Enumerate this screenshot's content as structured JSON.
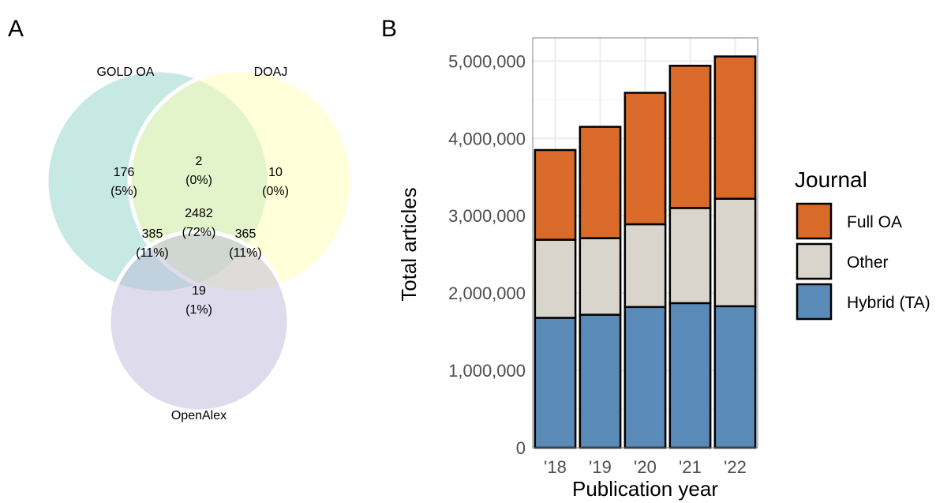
{
  "panels": {
    "a": "A",
    "b": "B"
  },
  "chart_data": [
    {
      "type": "venn",
      "sets": [
        {
          "name": "GOLD OA",
          "color": "#8dd3c7"
        },
        {
          "name": "DOAJ",
          "color": "#ffffb3"
        },
        {
          "name": "OpenAlex",
          "color": "#bebada"
        }
      ],
      "regions": [
        {
          "sets": [
            "GOLD OA"
          ],
          "count": "176",
          "pct": "(5%)"
        },
        {
          "sets": [
            "DOAJ"
          ],
          "count": "10",
          "pct": "(0%)"
        },
        {
          "sets": [
            "GOLD OA",
            "DOAJ"
          ],
          "count": "2",
          "pct": "(0%)"
        },
        {
          "sets": [
            "GOLD OA",
            "DOAJ",
            "OpenAlex"
          ],
          "count": "2482",
          "pct": "(72%)"
        },
        {
          "sets": [
            "GOLD OA",
            "OpenAlex"
          ],
          "count": "385",
          "pct": "(11%)"
        },
        {
          "sets": [
            "DOAJ",
            "OpenAlex"
          ],
          "count": "365",
          "pct": "(11%)"
        },
        {
          "sets": [
            "OpenAlex"
          ],
          "count": "19",
          "pct": "(1%)"
        }
      ]
    },
    {
      "type": "bar",
      "stacked": true,
      "categories": [
        "'18",
        "'19",
        "'20",
        "'21",
        "'22"
      ],
      "series": [
        {
          "name": "Hybrid (TA)",
          "color": "#5a8ab8",
          "values": [
            1680000,
            1720000,
            1820000,
            1870000,
            1830000
          ]
        },
        {
          "name": "Other",
          "color": "#d9d5cc",
          "values": [
            1010000,
            990000,
            1070000,
            1230000,
            1390000
          ]
        },
        {
          "name": "Full OA",
          "color": "#d96a2a",
          "values": [
            1160000,
            1440000,
            1700000,
            1840000,
            1840000
          ]
        }
      ],
      "xlabel": "Publication year",
      "ylabel": "Total articles",
      "ylim": [
        0,
        5300000
      ],
      "yticks": [
        0,
        1000000,
        2000000,
        3000000,
        4000000,
        5000000
      ],
      "ytick_labels": [
        "0",
        "1,000,000",
        "2,000,000",
        "3,000,000",
        "4,000,000",
        "5,000,000"
      ],
      "legend": {
        "title": "Journal",
        "position": "right",
        "order": [
          "Full OA",
          "Other",
          "Hybrid (TA)"
        ]
      },
      "grid": true
    }
  ]
}
